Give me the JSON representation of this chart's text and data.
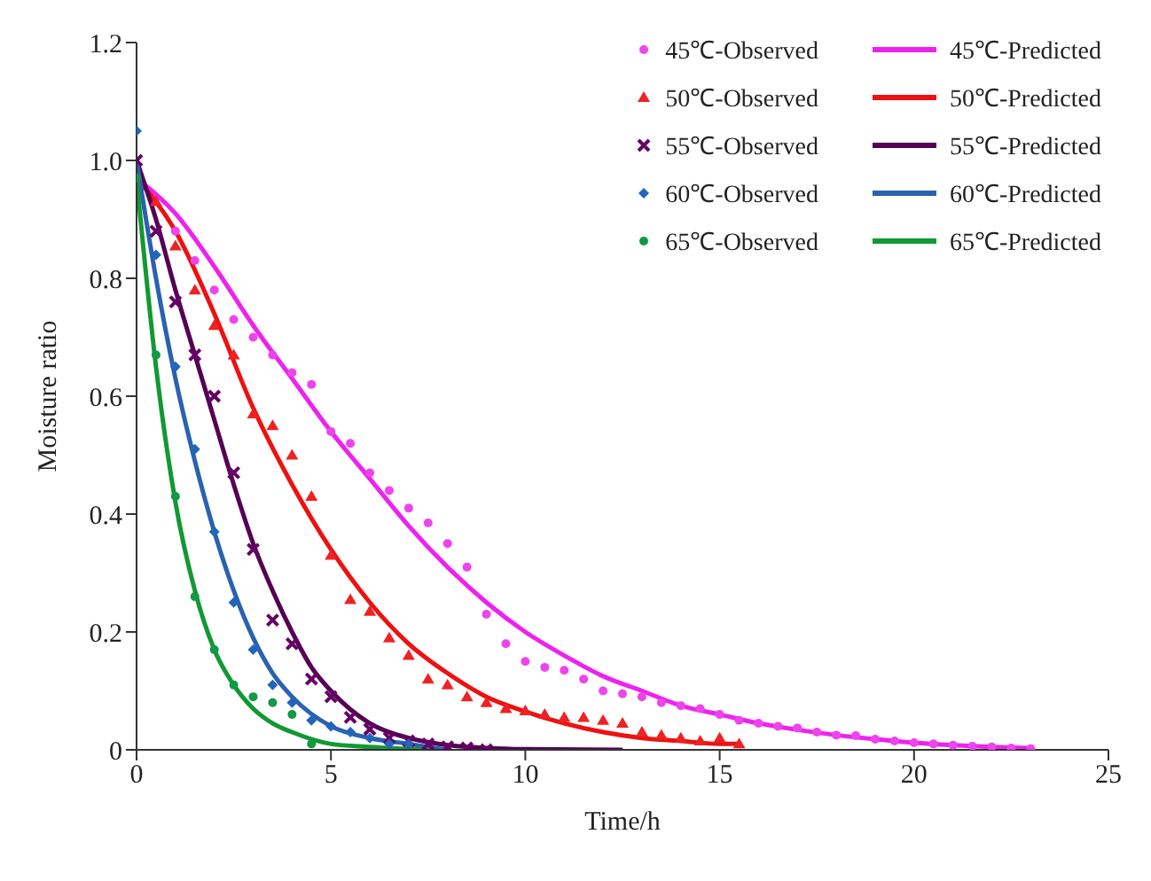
{
  "chart_data": {
    "type": "line",
    "xlabel": "Time/h",
    "ylabel": "Moisture ratio",
    "xlim": [
      0,
      25
    ],
    "xticks": [
      0,
      5,
      10,
      15,
      20,
      25
    ],
    "ylim": [
      0,
      1.2
    ],
    "yticks": [
      0,
      0.2,
      0.4,
      0.6,
      0.8,
      {
        "value": 1,
        "label": "1.0"
      },
      1.2
    ],
    "grid": false,
    "legend": "top right",
    "line_style": "solid",
    "series": [
      {
        "name": "45℃-Observed",
        "type": "scatter",
        "marker": "circle",
        "color": "#ee44ee",
        "x": [
          1,
          1.5,
          2,
          2.5,
          3,
          3.5,
          4,
          4.5,
          5,
          5.5,
          6,
          6.5,
          7,
          7.5,
          8,
          8.5,
          9,
          9.5,
          10,
          10.5,
          11,
          11.5,
          12,
          12.5,
          13,
          13.5,
          14,
          14.5,
          15,
          15.5,
          16,
          16.5,
          17,
          17.5,
          18,
          18.5,
          19,
          19.5,
          20,
          20.5,
          21,
          21.5,
          22,
          22.5,
          23
        ],
        "values": [
          0.88,
          0.83,
          0.78,
          0.73,
          0.7,
          0.67,
          0.64,
          0.62,
          0.54,
          0.52,
          0.47,
          0.44,
          0.41,
          0.385,
          0.35,
          0.31,
          0.23,
          0.18,
          0.15,
          0.14,
          0.135,
          0.12,
          0.1,
          0.095,
          0.09,
          0.08,
          0.075,
          0.07,
          0.06,
          0.05,
          0.045,
          0.04,
          0.037,
          0.03,
          0.025,
          0.024,
          0.018,
          0.015,
          0.012,
          0.01,
          0.008,
          0.006,
          0.005,
          0.003,
          0.002
        ]
      },
      {
        "name": "50℃-Observed",
        "type": "scatter",
        "marker": "triangle",
        "color": "#ee2222",
        "x": [
          0.5,
          1,
          1.5,
          2,
          2.5,
          3,
          3.5,
          4,
          4.5,
          5,
          5.5,
          6,
          6.5,
          7,
          7.5,
          8,
          8.5,
          9,
          9.5,
          10,
          10.5,
          11,
          11.5,
          12,
          12.5,
          13,
          13.5,
          14,
          14.5,
          15,
          15.5
        ],
        "values": [
          0.93,
          0.855,
          0.78,
          0.72,
          0.67,
          0.57,
          0.55,
          0.5,
          0.43,
          0.33,
          0.255,
          0.235,
          0.19,
          0.16,
          0.12,
          0.11,
          0.09,
          0.08,
          0.07,
          0.066,
          0.06,
          0.055,
          0.055,
          0.05,
          0.045,
          0.03,
          0.025,
          0.02,
          0.015,
          0.02,
          0.01
        ]
      },
      {
        "name": "55℃-Observed",
        "type": "scatter",
        "marker": "cross",
        "color": "#660066",
        "x": [
          0,
          0.5,
          1,
          1.5,
          2,
          2.5,
          3,
          3.5,
          4,
          4.5,
          5,
          5.5,
          6,
          6.5,
          7,
          7.5,
          8,
          8.5,
          9
        ],
        "values": [
          1.0,
          0.88,
          0.76,
          0.67,
          0.6,
          0.47,
          0.34,
          0.22,
          0.18,
          0.12,
          0.09,
          0.055,
          0.035,
          0.02,
          0.015,
          0.01,
          0.005,
          0.003,
          0.0
        ]
      },
      {
        "name": "60℃-Observed",
        "type": "scatter",
        "marker": "diamond",
        "color": "#2266bb",
        "x": [
          0,
          0.5,
          1,
          1.5,
          2,
          2.5,
          3,
          3.5,
          4,
          4.5,
          5,
          5.5,
          6,
          6.5,
          7
        ],
        "values": [
          1.05,
          0.84,
          0.65,
          0.51,
          0.37,
          0.25,
          0.17,
          0.11,
          0.08,
          0.05,
          0.04,
          0.03,
          0.02,
          0.01,
          0.01
        ]
      },
      {
        "name": "65℃-Observed",
        "type": "scatter",
        "marker": "circle",
        "color": "#119944",
        "x": [
          0,
          0.5,
          1,
          1.5,
          2,
          2.5,
          3,
          3.5,
          4,
          4.5
        ],
        "values": [
          0.97,
          0.67,
          0.43,
          0.26,
          0.17,
          0.11,
          0.09,
          0.08,
          0.06,
          0.01
        ]
      },
      {
        "name": "45℃-Predicted",
        "marker": "none",
        "color": "#ee22ee",
        "x": [
          0,
          1,
          2,
          3,
          4,
          5,
          6,
          7,
          8,
          9,
          10,
          11,
          12,
          13,
          14,
          15,
          16,
          17,
          18,
          19,
          20,
          21,
          22,
          23
        ],
        "values": [
          0.97,
          0.91,
          0.82,
          0.72,
          0.63,
          0.54,
          0.46,
          0.38,
          0.31,
          0.25,
          0.2,
          0.16,
          0.125,
          0.1,
          0.075,
          0.06,
          0.045,
          0.034,
          0.025,
          0.018,
          0.012,
          0.008,
          0.005,
          0.003
        ]
      },
      {
        "name": "50℃-Predicted",
        "marker": "none",
        "color": "#ee1111",
        "x": [
          0,
          1,
          2,
          3,
          4,
          5,
          6,
          7,
          8,
          9,
          10,
          11,
          12,
          13,
          14,
          15,
          15.5
        ],
        "values": [
          0.97,
          0.88,
          0.74,
          0.58,
          0.45,
          0.34,
          0.25,
          0.18,
          0.13,
          0.09,
          0.065,
          0.045,
          0.03,
          0.02,
          0.015,
          0.01,
          0.01
        ]
      },
      {
        "name": "55℃-Predicted",
        "marker": "none",
        "color": "#550055",
        "x": [
          0,
          0.5,
          1,
          1.5,
          2,
          2.5,
          3,
          3.5,
          4,
          4.5,
          5,
          6,
          7,
          8,
          9,
          10,
          12.5
        ],
        "values": [
          1.0,
          0.9,
          0.78,
          0.67,
          0.56,
          0.45,
          0.35,
          0.27,
          0.2,
          0.14,
          0.1,
          0.045,
          0.02,
          0.008,
          0.003,
          0.001,
          0
        ]
      },
      {
        "name": "60℃-Predicted",
        "marker": "none",
        "color": "#2a62b0",
        "x": [
          0,
          0.5,
          1,
          1.5,
          2,
          2.5,
          3,
          3.5,
          4,
          5,
          6,
          7,
          8
        ],
        "values": [
          1.0,
          0.8,
          0.63,
          0.49,
          0.37,
          0.27,
          0.19,
          0.13,
          0.09,
          0.04,
          0.02,
          0.01,
          0
        ]
      },
      {
        "name": "65℃-Predicted",
        "marker": "none",
        "color": "#119933",
        "x": [
          0,
          0.5,
          1,
          1.5,
          2,
          2.5,
          3,
          3.5,
          4,
          5,
          6,
          7.5
        ],
        "values": [
          0.97,
          0.65,
          0.42,
          0.27,
          0.17,
          0.11,
          0.07,
          0.045,
          0.03,
          0.01,
          0.005,
          0
        ]
      }
    ]
  }
}
